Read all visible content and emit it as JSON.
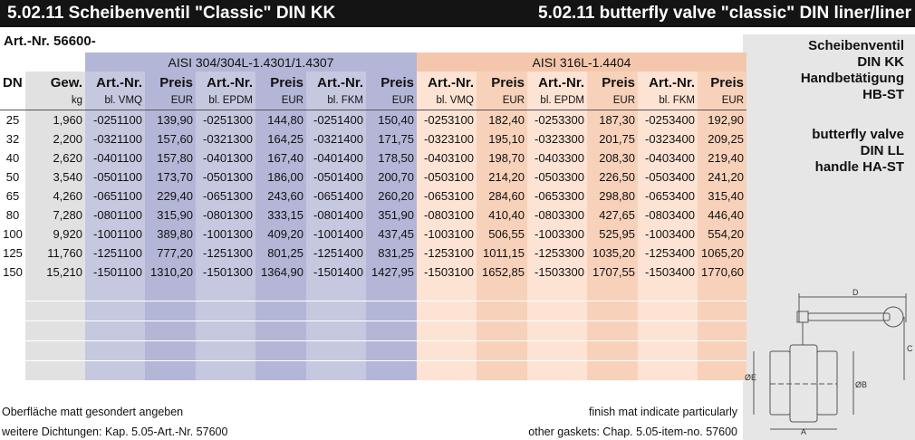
{
  "header": {
    "title_de": "5.02.11 Scheibenventil \"Classic\" DIN KK",
    "title_en": "5.02.11 butterfly valve \"classic\" DIN liner/liner"
  },
  "art_nr": "Art.-Nr. 56600-",
  "groups": {
    "g1": "AISI 304/304L-1.4301/1.4307",
    "g2": "AISI 316L-1.4404"
  },
  "columns": {
    "dn": "DN",
    "gew": "Gew.",
    "gew_unit": "kg",
    "art": "Art.-Nr.",
    "preis": "Preis",
    "eur": "EUR",
    "vmq": "bl. VMQ",
    "epdm": "bl. EPDM",
    "fkm": "bl. FKM"
  },
  "rows": [
    [
      "25",
      "1,960",
      "-0251100",
      "139,90",
      "-0251300",
      "144,80",
      "-0251400",
      "150,40",
      "-0253100",
      "182,40",
      "-0253300",
      "187,30",
      "-0253400",
      "192,90"
    ],
    [
      "32",
      "2,200",
      "-0321100",
      "157,60",
      "-0321300",
      "164,25",
      "-0321400",
      "171,75",
      "-0323100",
      "195,10",
      "-0323300",
      "201,75",
      "-0323400",
      "209,25"
    ],
    [
      "40",
      "2,620",
      "-0401100",
      "157,80",
      "-0401300",
      "167,40",
      "-0401400",
      "178,50",
      "-0403100",
      "198,70",
      "-0403300",
      "208,30",
      "-0403400",
      "219,40"
    ],
    [
      "50",
      "3,540",
      "-0501100",
      "173,70",
      "-0501300",
      "186,00",
      "-0501400",
      "200,70",
      "-0503100",
      "214,20",
      "-0503300",
      "226,50",
      "-0503400",
      "241,20"
    ],
    [
      "65",
      "4,260",
      "-0651100",
      "229,40",
      "-0651300",
      "243,60",
      "-0651400",
      "260,20",
      "-0653100",
      "284,60",
      "-0653300",
      "298,80",
      "-0653400",
      "315,40"
    ],
    [
      "80",
      "7,280",
      "-0801100",
      "315,90",
      "-0801300",
      "333,15",
      "-0801400",
      "351,90",
      "-0803100",
      "410,40",
      "-0803300",
      "427,65",
      "-0803400",
      "446,40"
    ],
    [
      "100",
      "9,920",
      "-1001100",
      "389,80",
      "-1001300",
      "409,20",
      "-1001400",
      "437,45",
      "-1003100",
      "506,55",
      "-1003300",
      "525,95",
      "-1003400",
      "554,20"
    ],
    [
      "125",
      "11,760",
      "-1251100",
      "777,20",
      "-1251300",
      "801,25",
      "-1251400",
      "831,25",
      "-1253100",
      "1011,15",
      "-1253300",
      "1035,20",
      "-1253400",
      "1065,20"
    ],
    [
      "150",
      "15,210",
      "-1501100",
      "1310,20",
      "-1501300",
      "1364,90",
      "-1501400",
      "1427,95",
      "-1503100",
      "1652,85",
      "-1503300",
      "1707,55",
      "-1503400",
      "1770,60"
    ]
  ],
  "sidebar": {
    "de_lines": [
      "Scheibenventil",
      "DIN KK",
      "Handbetätigung",
      "HB-ST"
    ],
    "en_lines": [
      "butterfly valve",
      "DIN LL",
      "handle HA-ST"
    ]
  },
  "drawing_labels": {
    "d": "D",
    "c": "C",
    "a": "A",
    "b": "ØB",
    "e": "ØE"
  },
  "footer": {
    "left1": "Oberfläche matt gesondert angeben",
    "right1": "finish mat indicate particularly",
    "left2": "weitere Dichtungen: Kap. 5.05-Art.-Nr. 57600",
    "right2": "other gaskets: Chap. 5.05-item-no. 57600"
  }
}
